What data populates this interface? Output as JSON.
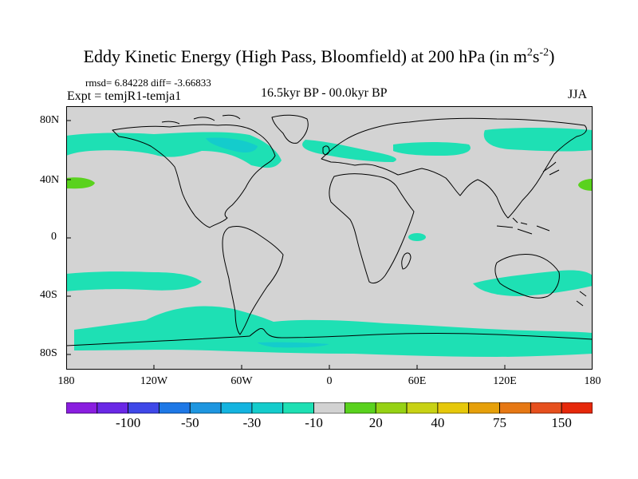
{
  "title_main": "Eddy Kinetic Energy (High Pass, Bloomfield) at 200 hPa (in m",
  "title_sup1": "2",
  "title_mid": "s",
  "title_sup2": "-2",
  "title_end": ")",
  "stats": "rmsd= 6.84228 diff= -3.66833",
  "expt": "Expt = temjR1-temja1",
  "period": "16.5kyr BP - 00.0kyr BP",
  "season": "JJA",
  "lat_labels": [
    "80N",
    "40N",
    "0",
    "40S",
    "80S"
  ],
  "lon_labels": [
    "180",
    "120W",
    "60W",
    "0",
    "60E",
    "120E",
    "180"
  ],
  "colorbar": {
    "colors": [
      "#8a1ee0",
      "#6a28e6",
      "#3f48e8",
      "#1e78e6",
      "#1e96e0",
      "#14b4e0",
      "#14cccc",
      "#1ee0b4",
      "#d2d2d2",
      "#5ad21e",
      "#96d214",
      "#c8d214",
      "#e6c80a",
      "#e6a00a",
      "#e67814",
      "#e6501e",
      "#e6280a"
    ],
    "labels": [
      "-100",
      "-50",
      "-30",
      "-10",
      "20",
      "40",
      "75",
      "150"
    ]
  },
  "map_colors": {
    "background": "#d3d3d3",
    "negative_band": "#1ee0b4",
    "negative_core": "#14cccc",
    "positive": "#5ad21e",
    "coast": "#000000"
  }
}
